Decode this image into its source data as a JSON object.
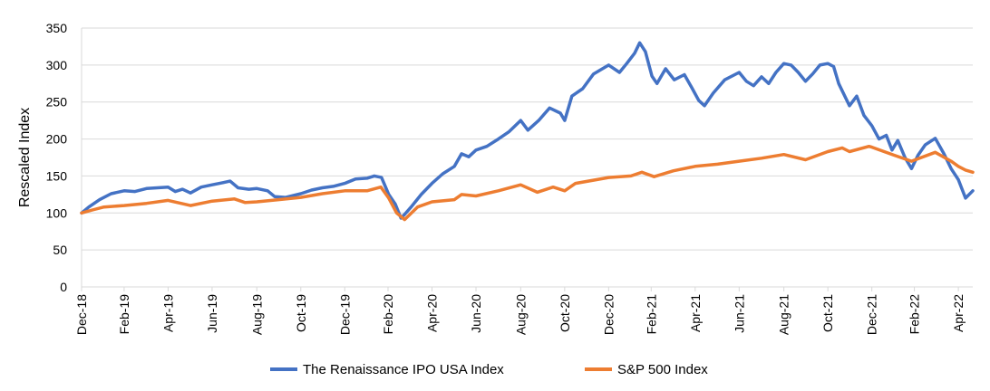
{
  "chart_data": {
    "type": "line",
    "title": "",
    "xlabel": "",
    "ylabel": "Rescaled Index",
    "ylim": [
      0,
      350
    ],
    "yticks": [
      0,
      50,
      100,
      150,
      200,
      250,
      300,
      350
    ],
    "xlim": [
      "2018-12-31",
      "2022-05-20"
    ],
    "xticks": [
      {
        "date": "2018-12-31",
        "label": "Dec-18"
      },
      {
        "date": "2019-02-28",
        "label": "Feb-19"
      },
      {
        "date": "2019-04-30",
        "label": "Apr-19"
      },
      {
        "date": "2019-06-30",
        "label": "Jun-19"
      },
      {
        "date": "2019-08-31",
        "label": "Aug-19"
      },
      {
        "date": "2019-10-31",
        "label": "Oct-19"
      },
      {
        "date": "2019-12-31",
        "label": "Dec-19"
      },
      {
        "date": "2020-02-29",
        "label": "Feb-20"
      },
      {
        "date": "2020-04-30",
        "label": "Apr-20"
      },
      {
        "date": "2020-06-30",
        "label": "Jun-20"
      },
      {
        "date": "2020-08-31",
        "label": "Aug-20"
      },
      {
        "date": "2020-10-31",
        "label": "Oct-20"
      },
      {
        "date": "2020-12-31",
        "label": "Dec-20"
      },
      {
        "date": "2021-02-28",
        "label": "Feb-21"
      },
      {
        "date": "2021-04-30",
        "label": "Apr-21"
      },
      {
        "date": "2021-06-30",
        "label": "Jun-21"
      },
      {
        "date": "2021-08-31",
        "label": "Aug-21"
      },
      {
        "date": "2021-10-31",
        "label": "Oct-21"
      },
      {
        "date": "2021-12-31",
        "label": "Dec-21"
      },
      {
        "date": "2022-02-28",
        "label": "Feb-22"
      },
      {
        "date": "2022-04-30",
        "label": "Apr-22"
      }
    ],
    "grid": "horizontal",
    "legend_position": "bottom",
    "series": [
      {
        "name": "The Renaissance IPO USA Index",
        "color": "#4472c4",
        "points": [
          [
            "2018-12-31",
            100
          ],
          [
            "2019-01-10",
            108
          ],
          [
            "2019-01-25",
            118
          ],
          [
            "2019-02-10",
            126
          ],
          [
            "2019-02-28",
            130
          ],
          [
            "2019-03-15",
            129
          ],
          [
            "2019-03-31",
            133
          ],
          [
            "2019-04-15",
            134
          ],
          [
            "2019-04-30",
            135
          ],
          [
            "2019-05-10",
            129
          ],
          [
            "2019-05-20",
            132
          ],
          [
            "2019-05-31",
            127
          ],
          [
            "2019-06-15",
            135
          ],
          [
            "2019-06-30",
            138
          ],
          [
            "2019-07-15",
            141
          ],
          [
            "2019-07-25",
            143
          ],
          [
            "2019-08-05",
            134
          ],
          [
            "2019-08-20",
            132
          ],
          [
            "2019-08-31",
            133
          ],
          [
            "2019-09-15",
            130
          ],
          [
            "2019-09-25",
            122
          ],
          [
            "2019-10-10",
            121
          ],
          [
            "2019-10-31",
            126
          ],
          [
            "2019-11-15",
            131
          ],
          [
            "2019-11-30",
            134
          ],
          [
            "2019-12-15",
            136
          ],
          [
            "2019-12-31",
            140
          ],
          [
            "2020-01-15",
            146
          ],
          [
            "2020-01-31",
            147
          ],
          [
            "2020-02-10",
            150
          ],
          [
            "2020-02-20",
            148
          ],
          [
            "2020-03-01",
            125
          ],
          [
            "2020-03-10",
            112
          ],
          [
            "2020-03-18",
            93
          ],
          [
            "2020-03-23",
            98
          ],
          [
            "2020-04-01",
            108
          ],
          [
            "2020-04-15",
            125
          ],
          [
            "2020-04-30",
            140
          ],
          [
            "2020-05-15",
            153
          ],
          [
            "2020-05-31",
            163
          ],
          [
            "2020-06-10",
            180
          ],
          [
            "2020-06-20",
            176
          ],
          [
            "2020-06-30",
            185
          ],
          [
            "2020-07-15",
            190
          ],
          [
            "2020-07-31",
            200
          ],
          [
            "2020-08-15",
            210
          ],
          [
            "2020-08-31",
            225
          ],
          [
            "2020-09-10",
            212
          ],
          [
            "2020-09-25",
            225
          ],
          [
            "2020-10-10",
            242
          ],
          [
            "2020-10-25",
            235
          ],
          [
            "2020-10-31",
            225
          ],
          [
            "2020-11-10",
            258
          ],
          [
            "2020-11-25",
            268
          ],
          [
            "2020-12-10",
            288
          ],
          [
            "2020-12-31",
            300
          ],
          [
            "2021-01-15",
            290
          ],
          [
            "2021-01-25",
            302
          ],
          [
            "2021-02-05",
            316
          ],
          [
            "2021-02-12",
            330
          ],
          [
            "2021-02-20",
            318
          ],
          [
            "2021-03-01",
            285
          ],
          [
            "2021-03-08",
            275
          ],
          [
            "2021-03-20",
            295
          ],
          [
            "2021-04-01",
            280
          ],
          [
            "2021-04-15",
            287
          ],
          [
            "2021-04-25",
            270
          ],
          [
            "2021-05-05",
            252
          ],
          [
            "2021-05-13",
            245
          ],
          [
            "2021-05-25",
            262
          ],
          [
            "2021-06-10",
            280
          ],
          [
            "2021-06-30",
            290
          ],
          [
            "2021-07-10",
            278
          ],
          [
            "2021-07-20",
            272
          ],
          [
            "2021-07-31",
            284
          ],
          [
            "2021-08-10",
            275
          ],
          [
            "2021-08-20",
            290
          ],
          [
            "2021-08-31",
            302
          ],
          [
            "2021-09-10",
            300
          ],
          [
            "2021-09-20",
            290
          ],
          [
            "2021-09-30",
            278
          ],
          [
            "2021-10-10",
            288
          ],
          [
            "2021-10-20",
            300
          ],
          [
            "2021-10-31",
            302
          ],
          [
            "2021-11-08",
            298
          ],
          [
            "2021-11-15",
            275
          ],
          [
            "2021-11-25",
            255
          ],
          [
            "2021-11-30",
            245
          ],
          [
            "2021-12-10",
            258
          ],
          [
            "2021-12-20",
            232
          ],
          [
            "2021-12-31",
            218
          ],
          [
            "2022-01-10",
            200
          ],
          [
            "2022-01-20",
            205
          ],
          [
            "2022-01-28",
            185
          ],
          [
            "2022-02-05",
            198
          ],
          [
            "2022-02-15",
            175
          ],
          [
            "2022-02-24",
            160
          ],
          [
            "2022-03-05",
            178
          ],
          [
            "2022-03-15",
            192
          ],
          [
            "2022-03-29",
            201
          ],
          [
            "2022-04-10",
            180
          ],
          [
            "2022-04-20",
            160
          ],
          [
            "2022-04-30",
            145
          ],
          [
            "2022-05-10",
            120
          ],
          [
            "2022-05-20",
            130
          ]
        ]
      },
      {
        "name": "S&P 500 Index",
        "color": "#ed7d31",
        "points": [
          [
            "2018-12-31",
            100
          ],
          [
            "2019-01-15",
            104
          ],
          [
            "2019-01-31",
            108
          ],
          [
            "2019-02-28",
            110
          ],
          [
            "2019-03-31",
            113
          ],
          [
            "2019-04-30",
            117
          ],
          [
            "2019-05-31",
            110
          ],
          [
            "2019-06-30",
            116
          ],
          [
            "2019-07-31",
            119
          ],
          [
            "2019-08-15",
            114
          ],
          [
            "2019-08-31",
            115
          ],
          [
            "2019-09-30",
            118
          ],
          [
            "2019-10-31",
            121
          ],
          [
            "2019-11-30",
            126
          ],
          [
            "2019-12-31",
            130
          ],
          [
            "2020-01-31",
            130
          ],
          [
            "2020-02-19",
            135
          ],
          [
            "2020-03-01",
            120
          ],
          [
            "2020-03-12",
            100
          ],
          [
            "2020-03-23",
            91
          ],
          [
            "2020-04-10",
            108
          ],
          [
            "2020-04-30",
            115
          ],
          [
            "2020-05-31",
            118
          ],
          [
            "2020-06-10",
            125
          ],
          [
            "2020-06-30",
            123
          ],
          [
            "2020-07-31",
            130
          ],
          [
            "2020-08-31",
            138
          ],
          [
            "2020-09-23",
            128
          ],
          [
            "2020-10-15",
            135
          ],
          [
            "2020-10-31",
            130
          ],
          [
            "2020-11-15",
            140
          ],
          [
            "2020-12-31",
            148
          ],
          [
            "2021-01-31",
            150
          ],
          [
            "2021-02-15",
            155
          ],
          [
            "2021-03-04",
            149
          ],
          [
            "2021-03-31",
            157
          ],
          [
            "2021-04-30",
            163
          ],
          [
            "2021-05-31",
            166
          ],
          [
            "2021-06-30",
            170
          ],
          [
            "2021-07-31",
            174
          ],
          [
            "2021-08-31",
            179
          ],
          [
            "2021-09-30",
            172
          ],
          [
            "2021-10-31",
            183
          ],
          [
            "2021-11-20",
            188
          ],
          [
            "2021-11-30",
            183
          ],
          [
            "2021-12-27",
            190
          ],
          [
            "2021-12-31",
            189
          ],
          [
            "2022-01-31",
            178
          ],
          [
            "2022-02-24",
            170
          ],
          [
            "2022-03-29",
            182
          ],
          [
            "2022-04-20",
            170
          ],
          [
            "2022-04-30",
            163
          ],
          [
            "2022-05-10",
            158
          ],
          [
            "2022-05-20",
            155
          ]
        ]
      }
    ]
  }
}
